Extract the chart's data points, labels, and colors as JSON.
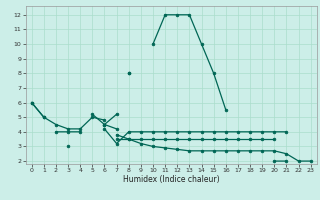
{
  "xlabel": "Humidex (Indice chaleur)",
  "bg_color": "#cceee8",
  "grid_color": "#aaddcc",
  "line_color": "#006655",
  "xlim": [
    -0.5,
    23.5
  ],
  "ylim": [
    1.8,
    12.6
  ],
  "yticks": [
    2,
    3,
    4,
    5,
    6,
    7,
    8,
    9,
    10,
    11,
    12
  ],
  "xticks": [
    0,
    1,
    2,
    3,
    4,
    5,
    6,
    7,
    8,
    9,
    10,
    11,
    12,
    13,
    14,
    15,
    16,
    17,
    18,
    19,
    20,
    21,
    22,
    23
  ],
  "line1": [
    6,
    5,
    null,
    null,
    null,
    null,
    null,
    null,
    8,
    null,
    10,
    12,
    12,
    12,
    10,
    8,
    5.5,
    null,
    null,
    null,
    2,
    2,
    null,
    null
  ],
  "line2": [
    null,
    null,
    null,
    null,
    null,
    5.2,
    4.5,
    5.2,
    null,
    null,
    null,
    null,
    null,
    null,
    null,
    null,
    null,
    null,
    null,
    null,
    null,
    null,
    null,
    null
  ],
  "line3": [
    null,
    null,
    4,
    4,
    4,
    null,
    4.2,
    3.2,
    4,
    4,
    4,
    4,
    4,
    4,
    4,
    4,
    4,
    4,
    4,
    4,
    4,
    4,
    null,
    null
  ],
  "line4": [
    null,
    null,
    null,
    3,
    null,
    null,
    null,
    3.5,
    3.5,
    3.5,
    3.5,
    3.5,
    3.5,
    3.5,
    3.5,
    3.5,
    3.5,
    3.5,
    3.5,
    3.5,
    3.5,
    null,
    null,
    null
  ],
  "line5": [
    null,
    null,
    null,
    null,
    null,
    null,
    null,
    3.8,
    3.5,
    3.2,
    3.0,
    2.9,
    2.8,
    2.7,
    2.7,
    2.7,
    2.7,
    2.7,
    2.7,
    2.7,
    2.7,
    2.5,
    2,
    2
  ],
  "line6": [
    null,
    null,
    null,
    null,
    null,
    null,
    4.5,
    4.2,
    null,
    null,
    null,
    null,
    null,
    null,
    null,
    null,
    null,
    null,
    null,
    null,
    null,
    null,
    null,
    null
  ]
}
